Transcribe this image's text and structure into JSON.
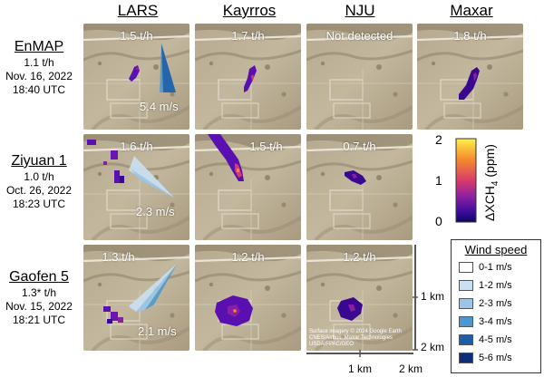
{
  "columns": [
    "LARS",
    "Kayrros",
    "NJU",
    "Maxar"
  ],
  "rows": [
    {
      "satellite": "EnMAP",
      "rate": "1.1 t/h",
      "date": "Nov. 16, 2022",
      "time": "18:40 UTC"
    },
    {
      "satellite": "Ziyuan 1",
      "rate": "1.0 t/h",
      "date": "Oct. 26, 2022",
      "time": "18:23 UTC"
    },
    {
      "satellite": "Gaofen 5",
      "rate": "1.3* t/h",
      "date": "Nov. 15, 2022",
      "time": "18:21 UTC"
    }
  ],
  "panels": {
    "enmap": {
      "lars": "1.5 t/h",
      "kayrros": "1.7 t/h",
      "nju": "Not detected",
      "maxar": "1.8 t/h",
      "wind": "5.4 m/s"
    },
    "ziyuan": {
      "lars": "1.6 t/h",
      "kayrros": "1.5 t/h",
      "nju": "0.7 t/h",
      "wind": "2.3 m/s"
    },
    "gaofen": {
      "lars": "1.3 t/h",
      "kayrros": "1.2 t/h",
      "nju": "1.2 t/h",
      "wind": "2.1 m/s"
    }
  },
  "credit": [
    "Surface imagery © 2024 Google Earth",
    "CNES/Airbus, Maxar Technologies",
    "USDA/FPAC/GEO"
  ],
  "colorbar": {
    "title": "ΔXCH",
    "subscript": "4",
    "unit": " (ppm)",
    "ticks": [
      "2",
      "1",
      "0"
    ],
    "colors": [
      "#fff04a",
      "#f58a2e",
      "#d93b6b",
      "#8a1fa0",
      "#3a0d9c",
      "#100460"
    ]
  },
  "legend": {
    "title": "Wind speed",
    "items": [
      {
        "label": "0-1 m/s",
        "color": "#ffffff"
      },
      {
        "label": "1-2 m/s",
        "color": "#c9e0f3"
      },
      {
        "label": "2-3 m/s",
        "color": "#99c6e8"
      },
      {
        "label": "3-4 m/s",
        "color": "#4c97cf"
      },
      {
        "label": "4-5 m/s",
        "color": "#1f5fa8"
      },
      {
        "label": "5-6 m/s",
        "color": "#0c2f78"
      }
    ]
  },
  "scale": {
    "vertical_1": "1 km",
    "vertical_2": "2 km",
    "horizontal_1": "1 km",
    "horizontal_2": "2 km"
  }
}
